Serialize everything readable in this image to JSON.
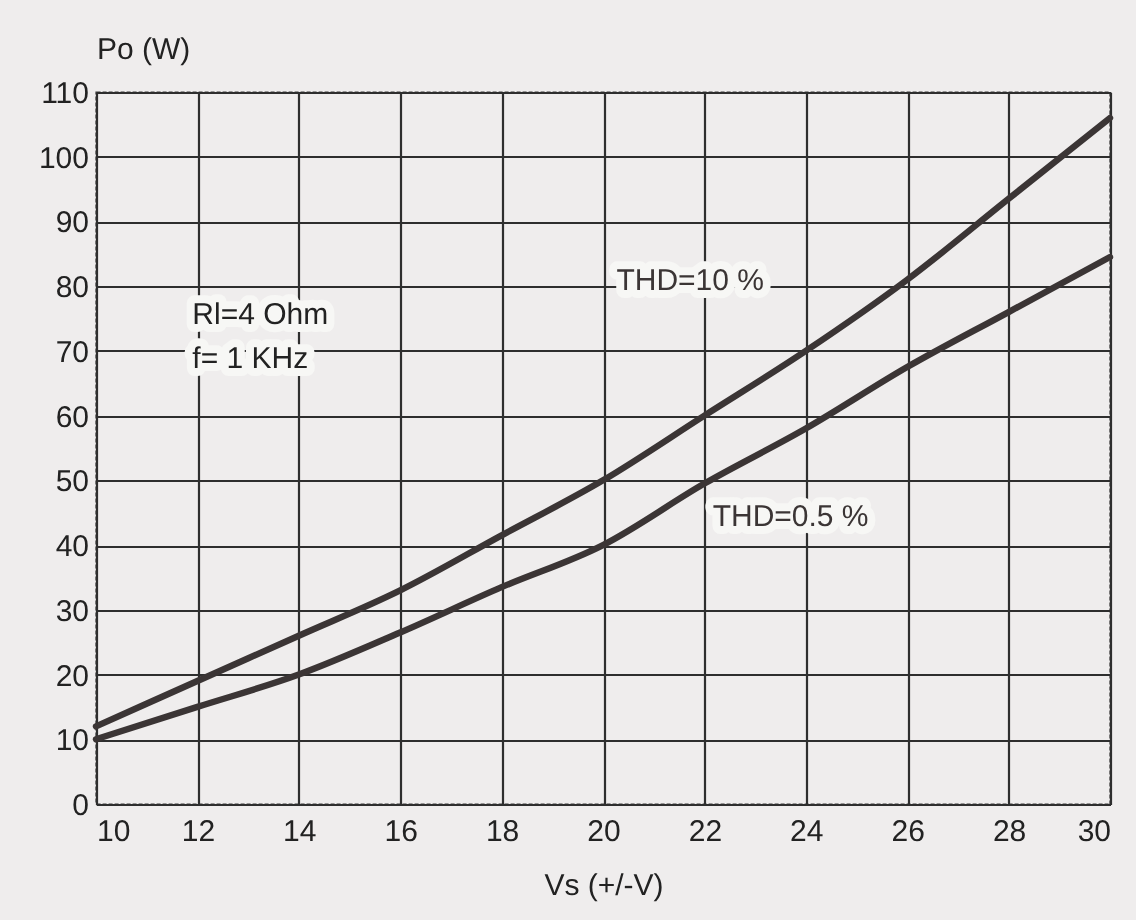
{
  "chart_data": {
    "type": "line",
    "xlabel": "Vs (+/-V)",
    "ylabel": "Po (W)",
    "x": [
      10,
      12,
      14,
      16,
      18,
      20,
      22,
      24,
      26,
      28,
      30
    ],
    "series": [
      {
        "name": "THD=10 %",
        "color": "#3b3535",
        "values": [
          12,
          19,
          26,
          33,
          41.5,
          50,
          60,
          70,
          81,
          93.5,
          106
        ]
      },
      {
        "name": "THD=0.5 %",
        "color": "#3b3535",
        "values": [
          10,
          15,
          20,
          26.5,
          33.5,
          40,
          49.5,
          58,
          67.5,
          76,
          84.5
        ]
      }
    ],
    "xlim": [
      10,
      30
    ],
    "xticks": [
      10,
      12,
      14,
      16,
      18,
      20,
      22,
      24,
      26,
      28,
      30
    ],
    "ylim": [
      0,
      110
    ],
    "yticks": [
      0,
      10,
      20,
      30,
      40,
      50,
      60,
      70,
      80,
      90,
      100,
      110
    ],
    "grid": true,
    "line_style": "solid",
    "annotations": [
      "Rl=4 Ohm",
      "f= 1 KHz"
    ]
  }
}
